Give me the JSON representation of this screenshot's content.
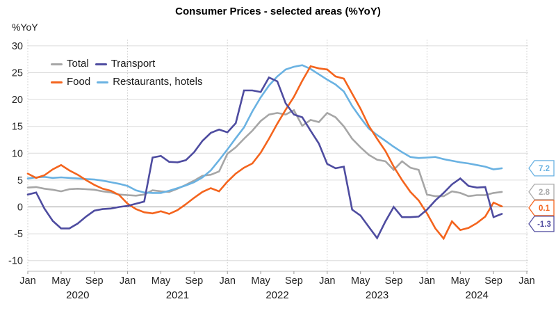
{
  "title": "Consumer Prices - selected areas (%YoY)",
  "y_axis_label": "%YoY",
  "legend": {
    "items": [
      {
        "label": "Total",
        "color": "#A6A6A6"
      },
      {
        "label": "Transport",
        "color": "#4E4CA0"
      },
      {
        "label": "Food",
        "color": "#F4641D"
      },
      {
        "label": "Restaurants, hotels",
        "color": "#6AB2E2"
      }
    ]
  },
  "end_labels": [
    {
      "value": "7.2",
      "color": "#6AB2E2"
    },
    {
      "value": "2.8",
      "color": "#ABABAB"
    },
    {
      "value": "0.1",
      "color": "#F4641D"
    },
    {
      "value": "-1.3",
      "color": "#5551A2"
    }
  ],
  "chart_data": {
    "type": "line",
    "title": "Consumer Prices - selected areas (%YoY)",
    "ylabel": "%YoY",
    "x_unit": "month",
    "x_range": [
      "Jan 2020",
      "Oct 2024"
    ],
    "ylim": [
      -10,
      30
    ],
    "y_ticks": [
      30,
      25,
      20,
      15,
      10,
      5,
      0,
      -5,
      -10
    ],
    "x_tick_months": [
      0,
      4,
      8,
      12,
      16,
      20,
      24,
      28,
      32,
      36,
      40,
      44,
      48,
      52,
      56,
      60
    ],
    "x_tick_labels": [
      "Jan",
      "May",
      "Sep",
      "Jan",
      "May",
      "Sep",
      "Jan",
      "May",
      "Sep",
      "Jan",
      "May",
      "Sep",
      "Jan",
      "May",
      "Sep",
      "Jan"
    ],
    "year_labels": [
      "2020",
      "2021",
      "2022",
      "2023",
      "2024"
    ],
    "grid": "horizontal solid gray, vertical dotted at each January, zero line darker",
    "legend_position": "top-left inside plot",
    "series": [
      {
        "name": "Total",
        "color": "#A6A6A6",
        "values": [
          3.6,
          3.7,
          3.4,
          3.2,
          2.9,
          3.3,
          3.4,
          3.3,
          3.2,
          2.9,
          2.7,
          2.3,
          2.2,
          2.1,
          2.3,
          3.1,
          2.9,
          2.8,
          3.4,
          4.1,
          4.9,
          5.8,
          6.0,
          6.6,
          9.9,
          11.1,
          12.7,
          14.2,
          16.0,
          17.2,
          17.5,
          17.2,
          18.0,
          15.1,
          16.2,
          15.8,
          17.5,
          16.7,
          15.0,
          12.7,
          11.1,
          9.7,
          8.8,
          8.5,
          6.9,
          8.5,
          7.3,
          6.9,
          2.3,
          2.0,
          2.0,
          2.9,
          2.6,
          2.0,
          2.2,
          2.2,
          2.6,
          2.8
        ]
      },
      {
        "name": "Restaurants, hotels",
        "color": "#6AB2E2",
        "values": [
          5.3,
          5.5,
          5.6,
          5.4,
          5.5,
          5.4,
          5.3,
          5.2,
          5.1,
          4.9,
          4.6,
          4.3,
          3.9,
          3.1,
          2.7,
          2.6,
          2.6,
          3.0,
          3.5,
          4.0,
          4.6,
          5.5,
          6.8,
          8.7,
          10.7,
          12.8,
          14.8,
          17.8,
          20.4,
          22.6,
          24.3,
          25.6,
          26.1,
          26.4,
          25.7,
          24.7,
          23.7,
          22.8,
          21.5,
          18.8,
          16.6,
          14.6,
          13.4,
          12.3,
          11.2,
          10.2,
          9.3,
          9.1,
          9.2,
          9.3,
          8.9,
          8.6,
          8.3,
          8.1,
          7.8,
          7.5,
          7.0,
          7.2
        ]
      },
      {
        "name": "Food",
        "color": "#F4641D",
        "values": [
          6.2,
          5.4,
          5.9,
          7.0,
          7.8,
          6.8,
          6.0,
          5.0,
          4.1,
          3.4,
          3.0,
          2.2,
          0.6,
          -0.4,
          -1.0,
          -1.2,
          -0.8,
          -1.3,
          -0.6,
          0.5,
          1.7,
          2.8,
          3.5,
          2.9,
          4.7,
          6.2,
          7.3,
          8.1,
          10.1,
          12.7,
          15.5,
          18.1,
          20.5,
          23.5,
          26.2,
          25.8,
          25.6,
          24.3,
          23.9,
          21.1,
          18.3,
          15.1,
          12.7,
          10.4,
          7.5,
          5.0,
          2.8,
          1.2,
          -1.2,
          -4.0,
          -5.9,
          -2.7,
          -4.3,
          -3.9,
          -3.0,
          -1.8,
          0.8,
          0.1
        ]
      },
      {
        "name": "Transport",
        "color": "#4E4CA0",
        "values": [
          2.3,
          2.7,
          -0.3,
          -2.6,
          -4.0,
          -4.0,
          -3.1,
          -1.8,
          -0.7,
          -0.4,
          -0.3,
          0.0,
          0.2,
          0.6,
          1.0,
          9.2,
          9.5,
          8.4,
          8.3,
          8.7,
          10.2,
          12.3,
          13.8,
          14.4,
          13.9,
          15.6,
          21.7,
          21.7,
          21.4,
          24.1,
          23.4,
          19.3,
          17.2,
          16.7,
          14.2,
          11.8,
          8.0,
          7.2,
          7.5,
          -0.5,
          -1.6,
          -3.7,
          -5.8,
          -2.7,
          0.0,
          -1.9,
          -1.9,
          -1.8,
          -0.5,
          1.2,
          2.6,
          4.2,
          5.3,
          3.9,
          3.6,
          3.7,
          -1.9,
          -1.3
        ]
      }
    ],
    "end_value_callouts": [
      {
        "series": "Restaurants, hotels",
        "value": 7.2
      },
      {
        "series": "Total",
        "value": 2.8
      },
      {
        "series": "Food",
        "value": 0.1
      },
      {
        "series": "Transport",
        "value": -1.3
      }
    ]
  }
}
